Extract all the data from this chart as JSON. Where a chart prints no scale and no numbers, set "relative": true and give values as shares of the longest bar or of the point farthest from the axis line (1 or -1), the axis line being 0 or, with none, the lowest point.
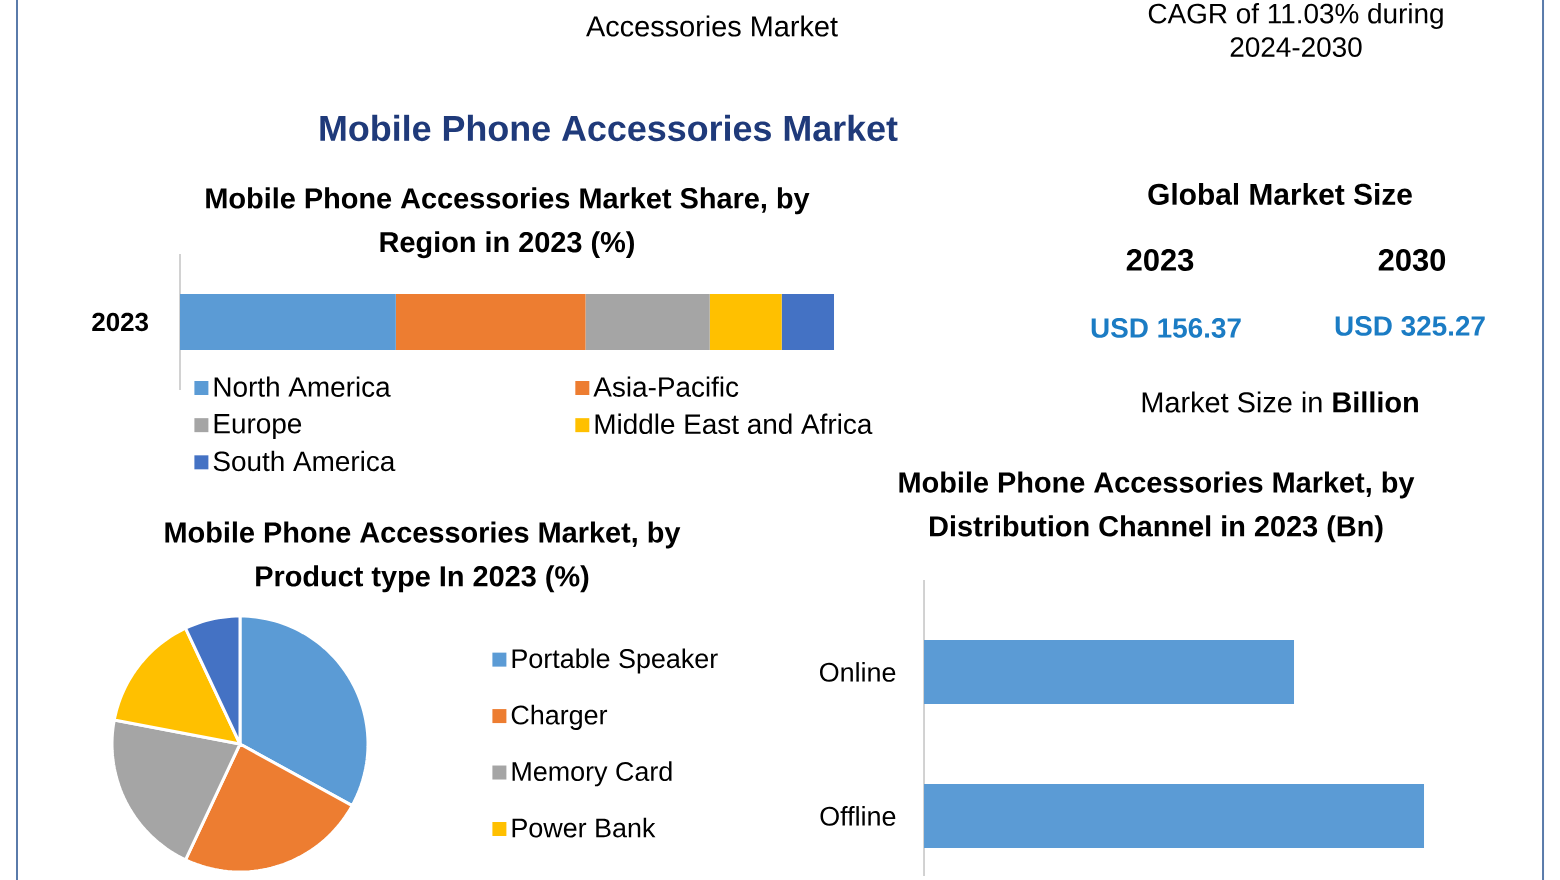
{
  "chart_data": [
    {
      "type": "other",
      "title": "Mobile Phone Accessories Market",
      "annotations": [
        "Accessories Market",
        "CAGR of 11.03% during 2024-2030"
      ]
    },
    {
      "type": "bar",
      "orientation": "horizontal",
      "stacked": true,
      "relative": true,
      "title": "Mobile Phone Accessories Market Share, by Region in 2023 (%)",
      "categories": [
        "2023"
      ],
      "series": [
        {
          "name": "North America",
          "color": "#5b9bd5",
          "values": [
            0.33
          ]
        },
        {
          "name": "Asia-Pacific",
          "color": "#ed7d31",
          "values": [
            0.29
          ]
        },
        {
          "name": "Europe",
          "color": "#a5a5a5",
          "values": [
            0.19
          ]
        },
        {
          "name": "Middle East and Africa",
          "color": "#ffc000",
          "values": [
            0.11
          ]
        },
        {
          "name": "South America",
          "color": "#4472c4",
          "values": [
            0.08
          ]
        }
      ],
      "legend": "bottom"
    },
    {
      "type": "other",
      "title": "Global Market Size",
      "annotations": [
        "2023",
        "2030",
        "USD 156.37",
        "USD 325.27",
        "Market Size in **Billion**"
      ]
    },
    {
      "type": "pie",
      "title": "Mobile Phone Accessories Market, by Product type In 2023 (%)",
      "categories": [
        "Portable Speaker",
        "Charger",
        "Memory Card",
        "Power Bank",
        null
      ],
      "values": [
        33,
        24,
        21,
        15,
        7
      ],
      "colors": [
        "#5b9bd5",
        "#ed7d31",
        "#a5a5a5",
        "#ffc000",
        "#4472c4"
      ],
      "legend": "right"
    },
    {
      "type": "bar",
      "orientation": "horizontal",
      "relative": true,
      "title": "Mobile Phone Accessories Market, by Distribution Channel in 2023 (Bn)",
      "categories": [
        "Online",
        "Offline"
      ],
      "values": [
        0.74,
        1
      ],
      "color": "#5b9bd5"
    }
  ]
}
